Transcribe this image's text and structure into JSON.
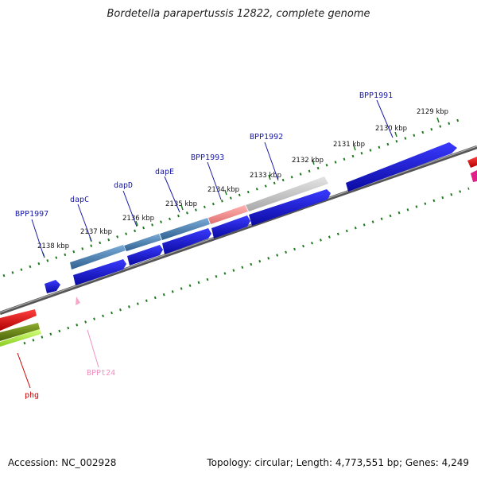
{
  "title": "Bordetella parapertussis 12822, complete genome",
  "footer": {
    "accession": "Accession: NC_002928",
    "summary": "Topology: circular; Length: 4,773,551 bp; Genes: 4,249"
  },
  "colors": {
    "forward_gene": "#1515d8",
    "dap_gene": "#4a82b0",
    "pink_gene": "#f08c8c",
    "grey_gene": "#c8c8c8",
    "red_gene": "#e80000",
    "olive_gene": "#6e8a18",
    "lime_gene": "#b0f040",
    "magenta_gene": "#e0208a",
    "backbone": "#777777",
    "ticks": "#1f7a1f",
    "label_blue": "#1a1aa8",
    "label_red": "#cc0000",
    "label_pink": "#f090c0"
  },
  "tick_labels": [
    "2138 kbp",
    "2137 kbp",
    "2136 kbp",
    "2135 kbp",
    "2134 kbp",
    "2133 kbp",
    "2132 kbp",
    "2131 kbp",
    "2130 kbp",
    "2129 kbp"
  ],
  "gene_labels": [
    {
      "text": "BPP1997",
      "color": "label_blue"
    },
    {
      "text": "dapC",
      "color": "label_blue"
    },
    {
      "text": "dapD",
      "color": "label_blue"
    },
    {
      "text": "dapE",
      "color": "label_blue"
    },
    {
      "text": "BPP1993",
      "color": "label_blue"
    },
    {
      "text": "BPP1992",
      "color": "label_blue"
    },
    {
      "text": "BPP1991",
      "color": "label_blue"
    },
    {
      "text": "BPPt24",
      "color": "label_pink"
    },
    {
      "text": "phg",
      "color": "label_red"
    }
  ]
}
